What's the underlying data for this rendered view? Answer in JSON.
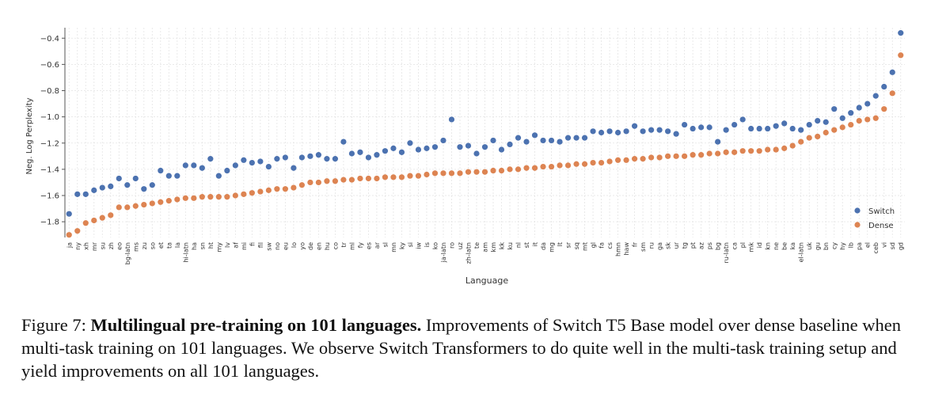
{
  "chart_data": {
    "type": "scatter",
    "x_label": "Language",
    "y_label": "Neg. Log Perplexity",
    "categories": [
      "ja",
      "ny",
      "xh",
      "mr",
      "su",
      "zh",
      "eo",
      "bg-latn",
      "ms",
      "zu",
      "so",
      "et",
      "ta",
      "la",
      "hi-latn",
      "ha",
      "sn",
      "ht",
      "my",
      "lv",
      "af",
      "mi",
      "fi",
      "fil",
      "sw",
      "no",
      "eu",
      "lo",
      "yo",
      "de",
      "en",
      "hu",
      "co",
      "tr",
      "ml",
      "fy",
      "es",
      "ar",
      "sl",
      "mn",
      "ky",
      "si",
      "iw",
      "is",
      "ko",
      "ja-latn",
      "ro",
      "uz",
      "zh-latn",
      "te",
      "am",
      "km",
      "kk",
      "ku",
      "nl",
      "st",
      "it",
      "da",
      "mg",
      "lt",
      "sr",
      "sq",
      "mt",
      "gl",
      "fa",
      "cs",
      "hmn",
      "haw",
      "fr",
      "sm",
      "ru",
      "ga",
      "sk",
      "ur",
      "tg",
      "pt",
      "az",
      "ps",
      "bg",
      "ru-latn",
      "ca",
      "pl",
      "mk",
      "id",
      "kn",
      "ne",
      "be",
      "ka",
      "el-latn",
      "uk",
      "gu",
      "bn",
      "cy",
      "hy",
      "lb",
      "pa",
      "el",
      "ceb",
      "vi",
      "sd",
      "gd"
    ],
    "series": [
      {
        "name": "Switch",
        "color": "#4c72b0",
        "values": [
          -1.74,
          -1.59,
          -1.59,
          -1.56,
          -1.54,
          -1.53,
          -1.47,
          -1.52,
          -1.47,
          -1.55,
          -1.52,
          -1.41,
          -1.45,
          -1.45,
          -1.37,
          -1.37,
          -1.39,
          -1.32,
          -1.45,
          -1.41,
          -1.37,
          -1.33,
          -1.35,
          -1.34,
          -1.38,
          -1.32,
          -1.31,
          -1.39,
          -1.31,
          -1.3,
          -1.29,
          -1.32,
          -1.32,
          -1.19,
          -1.28,
          -1.27,
          -1.31,
          -1.29,
          -1.26,
          -1.24,
          -1.27,
          -1.2,
          -1.25,
          -1.24,
          -1.23,
          -1.18,
          -1.02,
          -1.23,
          -1.22,
          -1.28,
          -1.23,
          -1.18,
          -1.25,
          -1.21,
          -1.16,
          -1.19,
          -1.14,
          -1.18,
          -1.18,
          -1.19,
          -1.16,
          -1.16,
          -1.16,
          -1.11,
          -1.12,
          -1.11,
          -1.12,
          -1.11,
          -1.07,
          -1.11,
          -1.1,
          -1.1,
          -1.11,
          -1.13,
          -1.06,
          -1.09,
          -1.08,
          -1.08,
          -1.19,
          -1.1,
          -1.06,
          -1.02,
          -1.09,
          -1.09,
          -1.09,
          -1.07,
          -1.05,
          -1.09,
          -1.1,
          -1.06,
          -1.03,
          -1.04,
          -0.94,
          -1.01,
          -0.97,
          -0.93,
          -0.9,
          -0.84,
          -0.77,
          -0.66,
          -0.36
        ]
      },
      {
        "name": "Dense",
        "color": "#dd8452",
        "values": [
          -1.9,
          -1.87,
          -1.81,
          -1.79,
          -1.77,
          -1.75,
          -1.69,
          -1.69,
          -1.68,
          -1.67,
          -1.66,
          -1.65,
          -1.64,
          -1.63,
          -1.62,
          -1.62,
          -1.61,
          -1.61,
          -1.61,
          -1.61,
          -1.6,
          -1.59,
          -1.58,
          -1.57,
          -1.56,
          -1.55,
          -1.55,
          -1.54,
          -1.52,
          -1.5,
          -1.5,
          -1.49,
          -1.49,
          -1.48,
          -1.48,
          -1.47,
          -1.47,
          -1.47,
          -1.46,
          -1.46,
          -1.46,
          -1.45,
          -1.45,
          -1.44,
          -1.43,
          -1.43,
          -1.43,
          -1.43,
          -1.42,
          -1.42,
          -1.42,
          -1.41,
          -1.41,
          -1.4,
          -1.4,
          -1.39,
          -1.39,
          -1.38,
          -1.38,
          -1.37,
          -1.37,
          -1.36,
          -1.36,
          -1.35,
          -1.35,
          -1.34,
          -1.33,
          -1.33,
          -1.32,
          -1.32,
          -1.31,
          -1.31,
          -1.3,
          -1.3,
          -1.3,
          -1.29,
          -1.29,
          -1.28,
          -1.28,
          -1.27,
          -1.27,
          -1.26,
          -1.26,
          -1.26,
          -1.25,
          -1.25,
          -1.24,
          -1.22,
          -1.19,
          -1.16,
          -1.15,
          -1.12,
          -1.1,
          -1.08,
          -1.06,
          -1.03,
          -1.02,
          -1.01,
          -0.94,
          -0.82,
          -0.53
        ]
      }
    ],
    "ylim": [
      -1.92,
      -0.32
    ],
    "yticks": [
      {
        "value": -1.8,
        "label": "−1.8"
      },
      {
        "value": -1.6,
        "label": "−1.6"
      },
      {
        "value": -1.4,
        "label": "−1.4"
      },
      {
        "value": -1.2,
        "label": "−1.2"
      },
      {
        "value": -1.0,
        "label": "−1.0"
      },
      {
        "value": -0.8,
        "label": "−0.8"
      },
      {
        "value": -0.6,
        "label": "−0.6"
      },
      {
        "value": -0.4,
        "label": "−0.4"
      }
    ],
    "grid": true,
    "legend": "lower right"
  },
  "caption": {
    "label": "Figure 7:",
    "title": "Multilingual pre-training on 101 languages.",
    "text": "Improvements of Switch T5 Base model over dense baseline when multi-task training on 101 languages. We observe Switch Transformers to do quite well in the multi-task training setup and yield improvements on all 101 languages."
  }
}
